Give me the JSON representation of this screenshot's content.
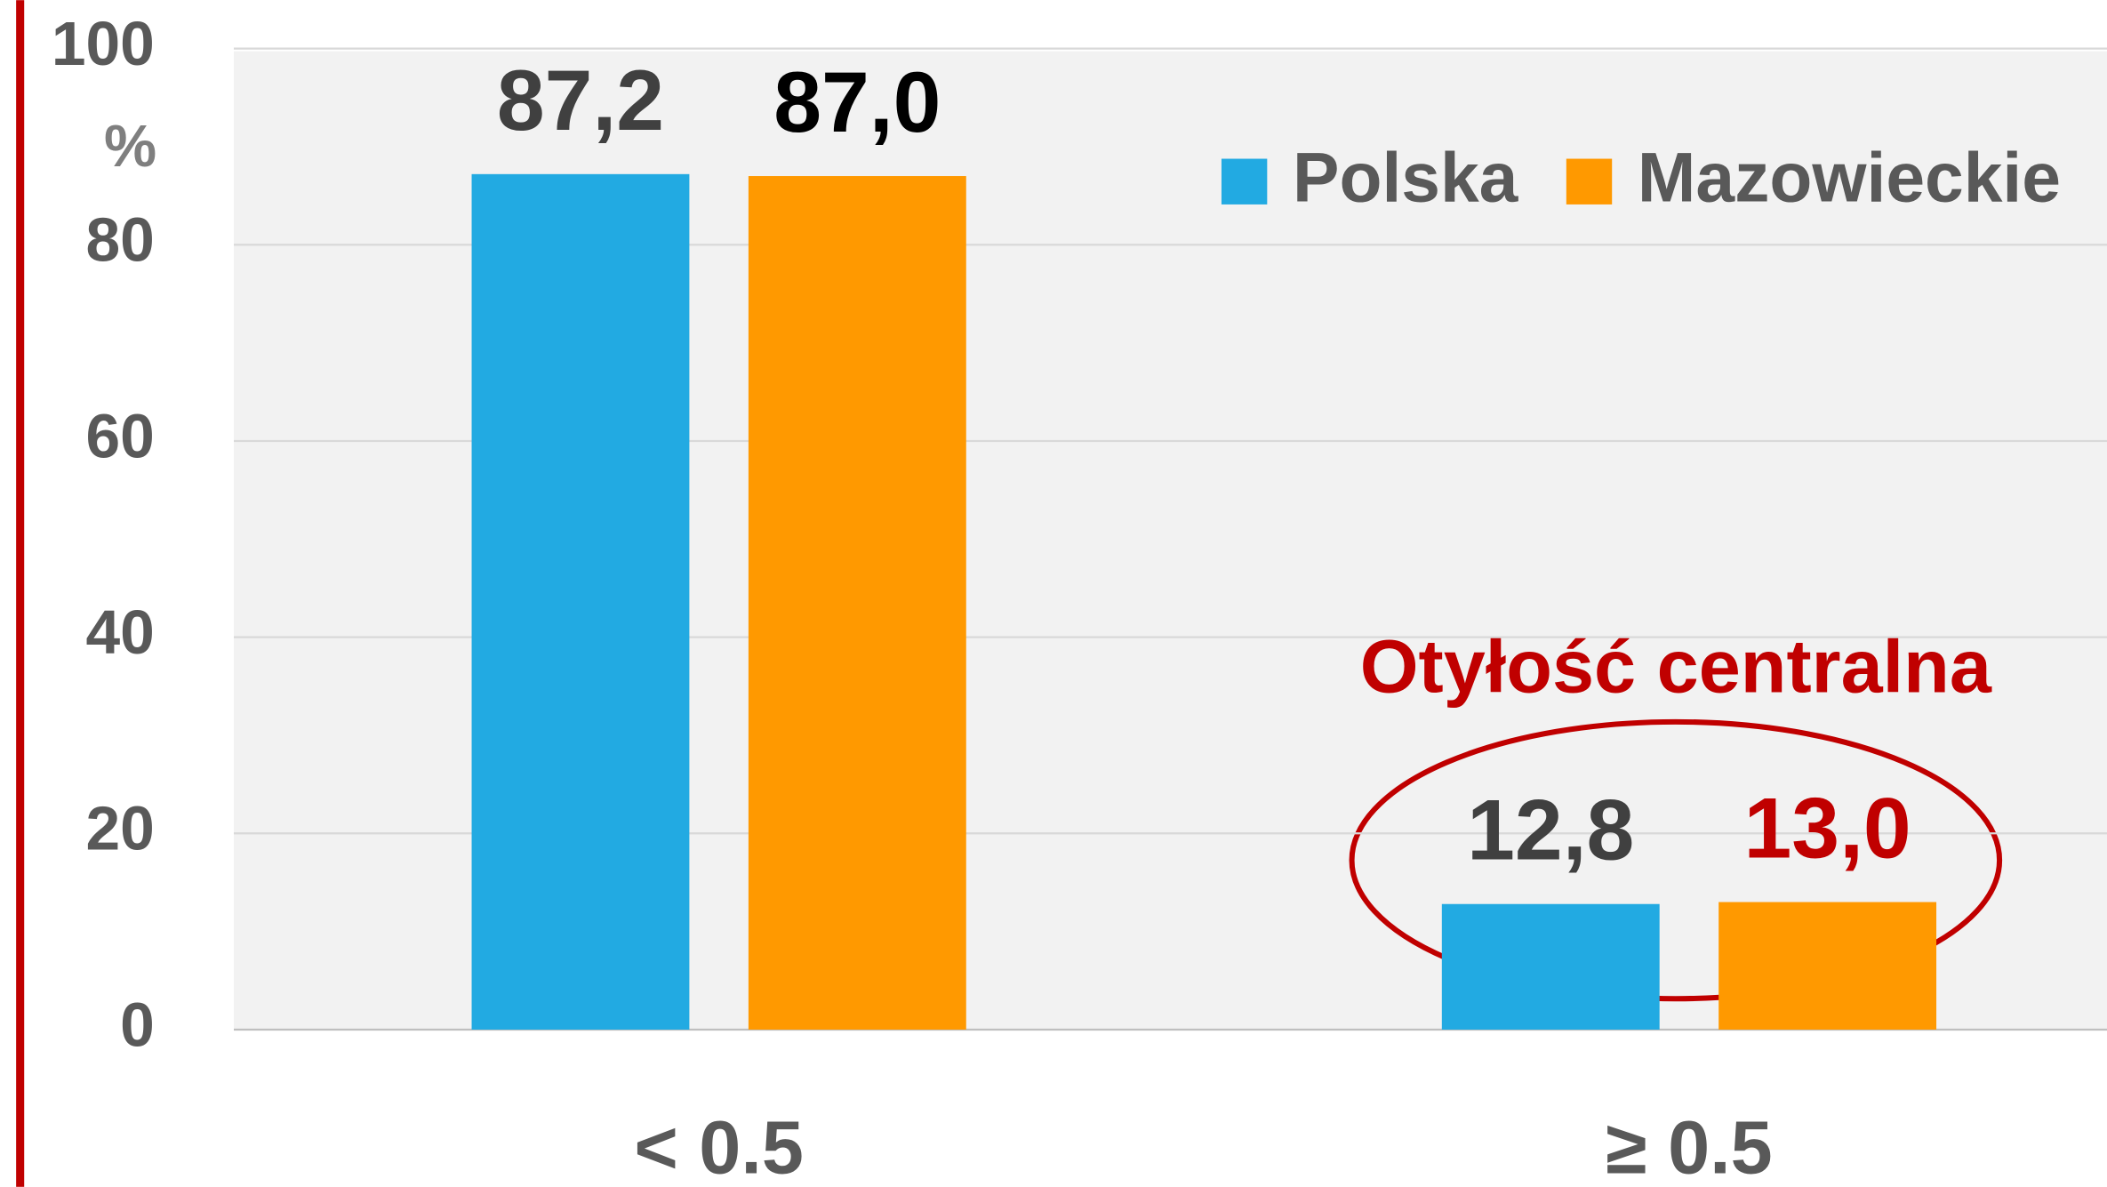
{
  "chart_data": {
    "type": "bar",
    "categories": [
      "< 0.5",
      "≥ 0.5"
    ],
    "series": [
      {
        "name": "Polska",
        "color": "#22aae2",
        "values": [
          87.2,
          12.8
        ],
        "value_labels": [
          "87,2",
          "12,8"
        ],
        "label_colors": [
          "#404040",
          "#404040"
        ]
      },
      {
        "name": "Mazowieckie",
        "color": "#ff9900",
        "values": [
          87.0,
          13.0
        ],
        "value_labels": [
          "87,0",
          "13,0"
        ],
        "label_colors": [
          "#000000",
          "#c00000"
        ]
      }
    ],
    "ylim": [
      0,
      100
    ],
    "yticks": [
      0,
      20,
      40,
      60,
      80,
      100
    ],
    "y_label": "%",
    "annotation": "Otyłość centralna",
    "grid": true,
    "legend": "top-right"
  }
}
